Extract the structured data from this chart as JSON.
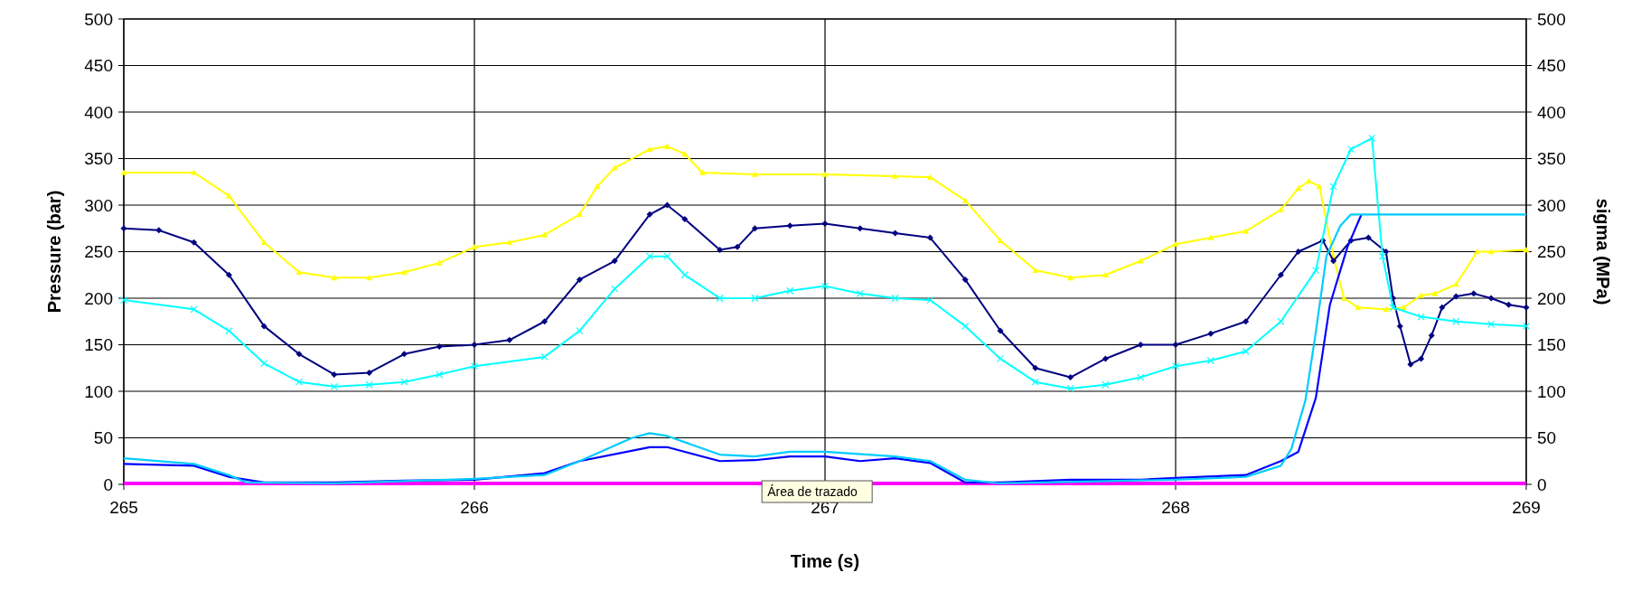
{
  "chart_data": {
    "type": "line",
    "xlabel": "Time (s)",
    "ylabel": "Pressure (bar)",
    "y2label": "sigma (MPa)",
    "xlim": [
      265,
      269
    ],
    "xticks": [
      265,
      266,
      267,
      268,
      269
    ],
    "ylim": [
      0,
      500
    ],
    "yticks": [
      0,
      50,
      100,
      150,
      200,
      250,
      300,
      350,
      400,
      450,
      500
    ],
    "y2lim": [
      0,
      500
    ],
    "y2ticks": [
      0,
      50,
      100,
      150,
      200,
      250,
      300,
      350,
      400,
      450,
      500
    ],
    "grid": true,
    "annotations": [
      "Área de trazado"
    ],
    "series": [
      {
        "color": "#ff00ff",
        "marker": "none",
        "x": [
          265,
          269
        ],
        "values": [
          1,
          1
        ]
      },
      {
        "color": "#ffff00",
        "marker": "triangle",
        "x": [
          265,
          265.2,
          265.3,
          265.4,
          265.5,
          265.6,
          265.7,
          265.8,
          265.9,
          266,
          266.1,
          266.2,
          266.3,
          266.35,
          266.4,
          266.5,
          266.55,
          266.6,
          266.65,
          266.8,
          267,
          267.2,
          267.3,
          267.4,
          267.5,
          267.6,
          267.7,
          267.8,
          267.9,
          268,
          268.1,
          268.2,
          268.3,
          268.35,
          268.38,
          268.41,
          268.45,
          268.48,
          268.52,
          268.6,
          268.65,
          268.7,
          268.74,
          268.8,
          268.86,
          268.9,
          269
        ],
        "values": [
          335,
          335,
          310,
          260,
          228,
          222,
          222,
          228,
          238,
          255,
          260,
          268,
          290,
          320,
          340,
          360,
          363,
          355,
          335,
          333,
          333,
          331,
          330,
          305,
          262,
          230,
          222,
          225,
          240,
          258,
          265,
          272,
          295,
          318,
          326,
          320,
          245,
          200,
          190,
          188,
          190,
          203,
          205,
          215,
          250,
          250,
          252
        ]
      },
      {
        "color": "#000080",
        "marker": "diamond",
        "x": [
          265,
          265.1,
          265.2,
          265.3,
          265.4,
          265.5,
          265.6,
          265.7,
          265.8,
          265.9,
          266,
          266.1,
          266.2,
          266.3,
          266.4,
          266.5,
          266.55,
          266.6,
          266.7,
          266.75,
          266.8,
          266.9,
          267,
          267.1,
          267.2,
          267.3,
          267.4,
          267.5,
          267.6,
          267.7,
          267.8,
          267.9,
          268,
          268.1,
          268.2,
          268.3,
          268.35,
          268.42,
          268.45,
          268.5,
          268.55,
          268.6,
          268.62,
          268.64,
          268.67,
          268.7,
          268.73,
          268.76,
          268.8,
          268.85,
          268.9,
          268.95,
          269
        ],
        "values": [
          275,
          273,
          260,
          225,
          170,
          140,
          118,
          120,
          140,
          148,
          150,
          155,
          175,
          220,
          240,
          290,
          300,
          285,
          252,
          255,
          275,
          278,
          280,
          275,
          270,
          265,
          220,
          165,
          125,
          115,
          135,
          150,
          150,
          162,
          175,
          225,
          250,
          262,
          240,
          262,
          265,
          250,
          200,
          170,
          129,
          135,
          160,
          190,
          202,
          205,
          200,
          193,
          190
        ]
      },
      {
        "color": "#00ffff",
        "marker": "cross",
        "x": [
          265,
          265.2,
          265.3,
          265.4,
          265.5,
          265.6,
          265.7,
          265.8,
          265.9,
          266,
          266.2,
          266.3,
          266.4,
          266.5,
          266.55,
          266.6,
          266.7,
          266.8,
          266.9,
          267,
          267.1,
          267.2,
          267.3,
          267.4,
          267.5,
          267.6,
          267.7,
          267.8,
          267.9,
          268,
          268.1,
          268.2,
          268.3,
          268.4,
          268.45,
          268.5,
          268.56,
          268.59,
          268.62,
          268.7,
          268.8,
          268.9,
          269
        ],
        "values": [
          198,
          188,
          165,
          130,
          110,
          105,
          107,
          110,
          118,
          127,
          137,
          165,
          210,
          245,
          245,
          225,
          200,
          200,
          208,
          213,
          205,
          200,
          198,
          170,
          135,
          110,
          103,
          107,
          115,
          127,
          133,
          143,
          175,
          230,
          320,
          360,
          372,
          245,
          190,
          180,
          175,
          172,
          170
        ]
      },
      {
        "color": "#0000ff",
        "marker": "none",
        "x": [
          265,
          265.2,
          265.3,
          265.4,
          265.6,
          265.8,
          266,
          266.2,
          266.3,
          266.5,
          266.55,
          266.6,
          266.7,
          266.8,
          266.9,
          267,
          267.1,
          267.2,
          267.3,
          267.4,
          267.5,
          267.7,
          267.9,
          268,
          268.2,
          268.3,
          268.35,
          268.4,
          268.44,
          268.49,
          268.53
        ],
        "values": [
          22,
          20,
          8,
          2,
          2,
          4,
          5,
          12,
          25,
          40,
          40,
          35,
          25,
          26,
          30,
          30,
          25,
          28,
          23,
          2,
          2,
          5,
          5,
          7,
          10,
          25,
          35,
          93,
          193,
          255,
          290
        ]
      },
      {
        "color": "#00ccff",
        "marker": "none",
        "x": [
          265,
          265.2,
          265.3,
          265.35,
          265.6,
          266,
          266.2,
          266.3,
          266.45,
          266.5,
          266.55,
          266.7,
          266.8,
          266.9,
          267,
          267.2,
          267.3,
          267.4,
          267.5,
          268,
          268.2,
          268.3,
          268.33,
          268.37,
          268.4,
          268.43,
          268.47,
          268.5,
          269
        ],
        "values": [
          28,
          22,
          10,
          2,
          1,
          6,
          10,
          25,
          50,
          55,
          52,
          32,
          30,
          35,
          35,
          30,
          25,
          5,
          1,
          5,
          8,
          20,
          38,
          90,
          164,
          245,
          278,
          290,
          290
        ]
      }
    ]
  }
}
